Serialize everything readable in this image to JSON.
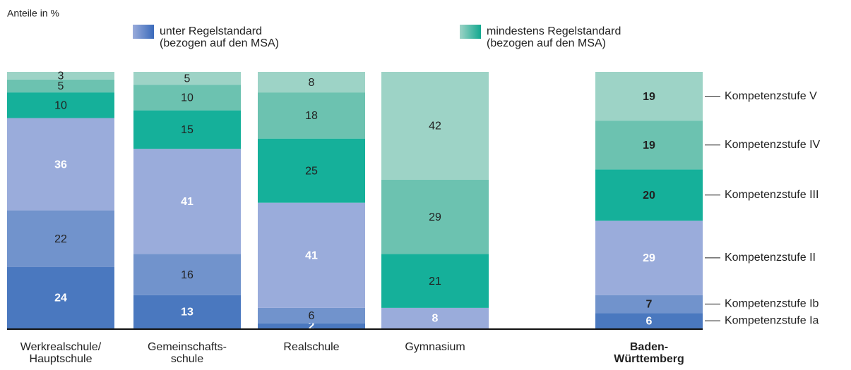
{
  "chart_data": {
    "type": "stacked_bar",
    "subtitle": "Anteile in %",
    "legend": [
      {
        "label": [
          "unter Regelstandard",
          "(bezogen auf den MSA)"
        ],
        "colors": [
          "#9aacdb",
          "#3a6abb"
        ]
      },
      {
        "label": [
          "mindestens Regelstandard",
          "(bezogen auf den MSA)"
        ],
        "colors": [
          "#9dd3c6",
          "#12a88f"
        ]
      }
    ],
    "categories": [
      [
        "Werkrealschule/",
        "Hauptschule"
      ],
      [
        "Gemeinschafts-",
        "schule"
      ],
      [
        "Realschule"
      ],
      [
        "Gymnasium"
      ],
      [
        "Baden-",
        "Württemberg"
      ]
    ],
    "emphasized_category": 4,
    "ylim": [
      0,
      100
    ],
    "series": [
      {
        "name": "Kompetenzstufe Ia",
        "color": "#4a78bf",
        "label_color": "#ffffff",
        "values": [
          24,
          13,
          2,
          null,
          6
        ]
      },
      {
        "name": "Kompetenzstufe Ib",
        "color": "#7193cc",
        "label_color": "#222222",
        "values": [
          22,
          16,
          6,
          null,
          7
        ]
      },
      {
        "name": "Kompetenzstufe II",
        "color": "#9aacdb",
        "label_color": "#ffffff",
        "values": [
          36,
          41,
          41,
          8,
          29
        ]
      },
      {
        "name": "Kompetenzstufe III",
        "color": "#15b09a",
        "label_color": "#222222",
        "values": [
          10,
          15,
          25,
          21,
          20
        ]
      },
      {
        "name": "Kompetenzstufe IV",
        "color": "#6cc2b0",
        "label_color": "#222222",
        "values": [
          5,
          10,
          18,
          29,
          19
        ]
      },
      {
        "name": "Kompetenzstufe V",
        "color": "#9dd3c6",
        "label_color": "#222222",
        "values": [
          3,
          5,
          8,
          42,
          19
        ]
      }
    ]
  }
}
